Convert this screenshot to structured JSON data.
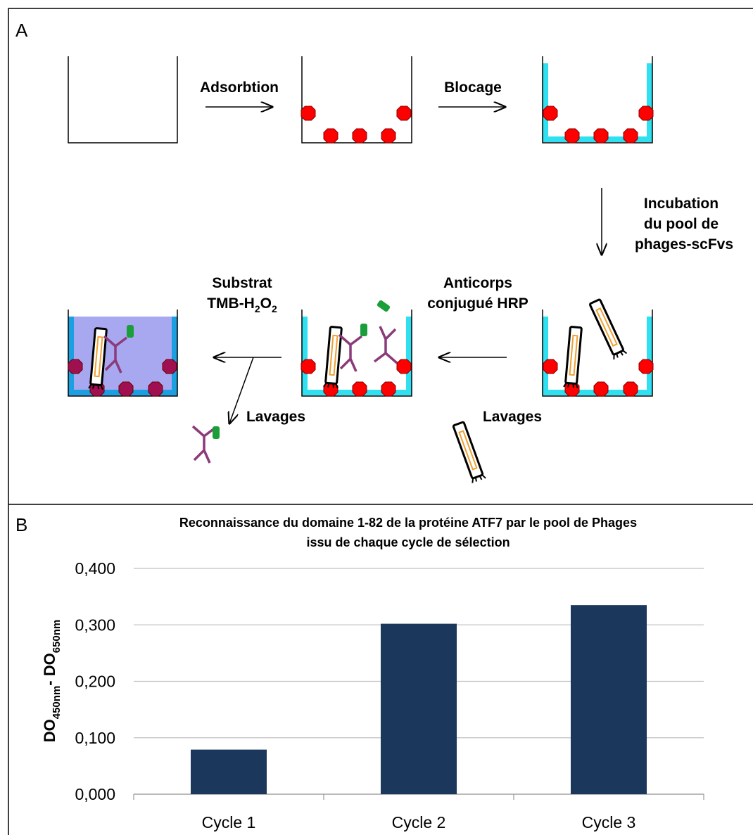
{
  "panel_a": {
    "label": "A",
    "steps": {
      "adsorption": "Adsorbtion",
      "blocking": "Blocage",
      "incubation": [
        "Incubation",
        "du pool de",
        "phages-scFvs"
      ],
      "antibody": [
        "Anticorps",
        "conjugué HRP"
      ],
      "substrate": [
        "Substrat",
        [
          "TMB-H",
          "2",
          "O",
          "2"
        ]
      ],
      "wash_1": "Lavages",
      "wash_2": "Lavages"
    }
  },
  "panel_b_label": "B",
  "chart_data": {
    "type": "bar",
    "title": [
      "Reconnaissance du domaine 1-82 de la protéine ATF7 par le pool de Phages",
      "issu de chaque cycle de sélection"
    ],
    "y_label": [
      "DO",
      "450nm",
      "- DO",
      "650nm"
    ],
    "categories": [
      "Cycle 1",
      "Cycle 2",
      "Cycle 3"
    ],
    "values": [
      0.079,
      0.302,
      0.335
    ],
    "color": "#1b375c",
    "ylim": [
      0,
      0.4
    ],
    "yticks": [
      {
        "value": 0,
        "label": "0,000"
      },
      {
        "value": 0.1,
        "label": "0,100"
      },
      {
        "value": 0.2,
        "label": "0,200"
      },
      {
        "value": 0.3,
        "label": "0,300"
      },
      {
        "value": 0.4,
        "label": "0,400"
      }
    ],
    "grid": true
  }
}
